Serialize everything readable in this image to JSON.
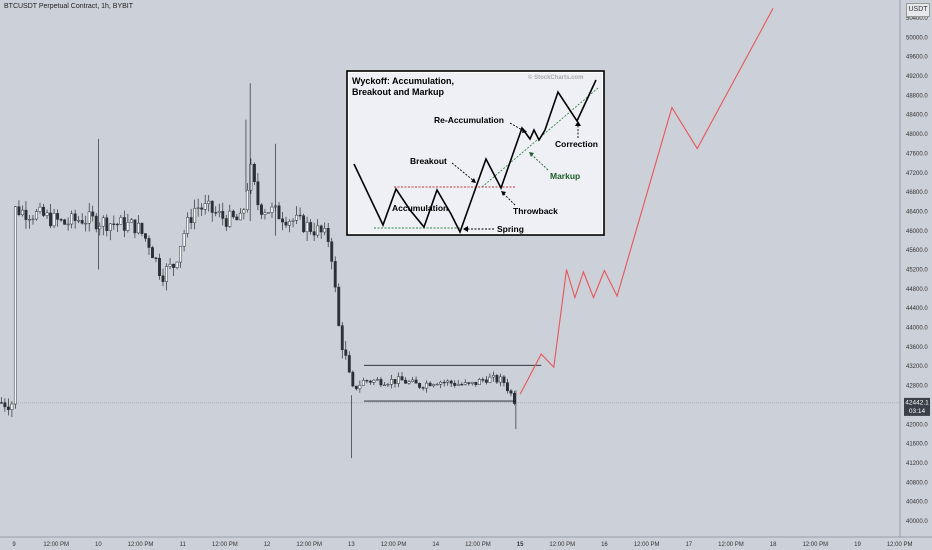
{
  "chart_title": "BTCUSDT Perpetual Contract, 1h, BYBIT",
  "currency": "USDT",
  "chart_data": {
    "type": "candlestick",
    "x_ticks": [
      "9",
      "12:00 PM",
      "10",
      "12:00 PM",
      "11",
      "12:00 PM",
      "12",
      "12:00 PM",
      "13",
      "12:00 PM",
      "14",
      "12:00 PM",
      "15",
      "12:00 PM",
      "16",
      "12:00 PM",
      "17",
      "12:00 PM",
      "18",
      "12:00 PM",
      "19",
      "12:00 PM"
    ],
    "y_ticks": [
      "40000.0",
      "40400.0",
      "40800.0",
      "41200.0",
      "41600.0",
      "42000.0",
      "42400.0",
      "42800.0",
      "43200.0",
      "43600.0",
      "44000.0",
      "44400.0",
      "44800.0",
      "45200.0",
      "45600.0",
      "46000.0",
      "46400.0",
      "46800.0",
      "47200.0",
      "47600.0",
      "48000.0",
      "48400.0",
      "48800.0",
      "49200.0",
      "49600.0",
      "50000.0",
      "50400.0"
    ],
    "ylim": [
      39900,
      50800
    ],
    "current_price": "42442.1",
    "countdown": "03:14",
    "range_box": {
      "top": 43220,
      "bottom": 42480
    },
    "projection_path": [
      {
        "x": 15.0,
        "y": 42620
      },
      {
        "x": 15.25,
        "y": 43450
      },
      {
        "x": 15.4,
        "y": 43180
      },
      {
        "x": 15.55,
        "y": 45200
      },
      {
        "x": 15.65,
        "y": 44620
      },
      {
        "x": 15.75,
        "y": 45150
      },
      {
        "x": 15.87,
        "y": 44620
      },
      {
        "x": 16.0,
        "y": 45180
      },
      {
        "x": 16.15,
        "y": 44650
      },
      {
        "x": 16.8,
        "y": 48550
      },
      {
        "x": 17.1,
        "y": 47700
      },
      {
        "x": 18.0,
        "y": 50600
      }
    ]
  },
  "inset": {
    "title_line1": "Wyckoff: Accumulation,",
    "title_line2": "Breakout and Markup",
    "watermark": "© StockCharts.com",
    "labels": {
      "accumulation": "Accumulation",
      "breakout": "Breakout",
      "reaccumulation": "Re-Accumulation",
      "correction": "Correction",
      "markup": "Markup",
      "throwback": "Throwback",
      "spring": "Spring"
    }
  }
}
